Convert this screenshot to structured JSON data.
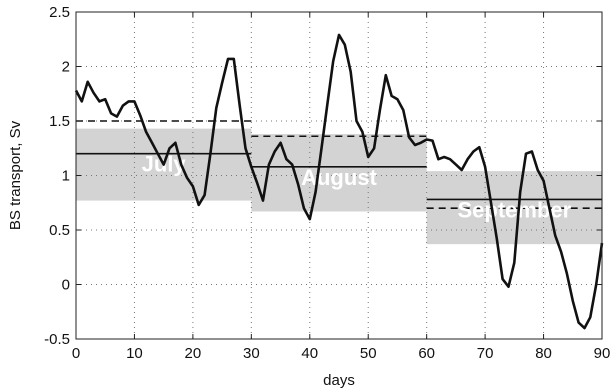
{
  "chart_data": {
    "type": "line",
    "xlabel": "days",
    "ylabel": "BS transport, Sv",
    "xlim": [
      0,
      90
    ],
    "ylim": [
      -0.5,
      2.5
    ],
    "xticks": [
      0,
      10,
      20,
      30,
      40,
      50,
      60,
      70,
      80,
      90
    ],
    "yticks": [
      -0.5,
      0,
      0.5,
      1,
      1.5,
      2,
      2.5
    ],
    "grid": "dotted",
    "colors": {
      "line": "#111111",
      "band": "#d3d3d3",
      "band_text": "#ffffff"
    },
    "series": [
      {
        "x": [
          0,
          1,
          2,
          3,
          4,
          5,
          6,
          7,
          8,
          9,
          10,
          11,
          12,
          13,
          14,
          15,
          16,
          17,
          18,
          19,
          20,
          21,
          22,
          23,
          24,
          25,
          26,
          27,
          28,
          29,
          30,
          31,
          32,
          33,
          34,
          35,
          36,
          37,
          38,
          39,
          40,
          41,
          42,
          43,
          44,
          45,
          46,
          47,
          48,
          49,
          50,
          51,
          52,
          53,
          54,
          55,
          56,
          57,
          58,
          59,
          60,
          61,
          62,
          63,
          64,
          65,
          66,
          67,
          68,
          69,
          70,
          71,
          72,
          73,
          74,
          75,
          76,
          77,
          78,
          79,
          80,
          81,
          82,
          83,
          84,
          85,
          86,
          87,
          88,
          89,
          90
        ],
        "y": [
          1.78,
          1.68,
          1.86,
          1.76,
          1.68,
          1.7,
          1.57,
          1.54,
          1.64,
          1.68,
          1.68,
          1.55,
          1.4,
          1.3,
          1.2,
          1.1,
          1.25,
          1.3,
          1.1,
          0.98,
          0.9,
          0.73,
          0.82,
          1.2,
          1.62,
          1.85,
          2.07,
          2.07,
          1.65,
          1.25,
          1.08,
          0.93,
          0.77,
          1.1,
          1.22,
          1.3,
          1.15,
          1.1,
          0.92,
          0.7,
          0.6,
          0.85,
          1.25,
          1.65,
          2.05,
          2.29,
          2.2,
          1.95,
          1.5,
          1.4,
          1.17,
          1.25,
          1.6,
          1.92,
          1.73,
          1.7,
          1.6,
          1.35,
          1.28,
          1.3,
          1.33,
          1.32,
          1.15,
          1.17,
          1.15,
          1.1,
          1.05,
          1.15,
          1.22,
          1.26,
          1.08,
          0.75,
          0.42,
          0.05,
          -0.02,
          0.2,
          0.85,
          1.2,
          1.22,
          1.05,
          0.95,
          0.7,
          0.45,
          0.3,
          0.1,
          -0.15,
          -0.35,
          -0.4,
          -0.3,
          0.0,
          0.38
        ]
      }
    ],
    "months": [
      {
        "name": "July",
        "x0": 0,
        "x1": 30,
        "band_low": 0.77,
        "band_high": 1.43,
        "mean": 1.2,
        "dashed": 1.5
      },
      {
        "name": "August",
        "x0": 30,
        "x1": 60,
        "band_low": 0.67,
        "band_high": 1.38,
        "mean": 1.08,
        "dashed": 1.36
      },
      {
        "name": "September",
        "x0": 60,
        "x1": 90,
        "band_low": 0.37,
        "band_high": 1.04,
        "mean": 0.78,
        "dashed": 0.7
      }
    ]
  }
}
